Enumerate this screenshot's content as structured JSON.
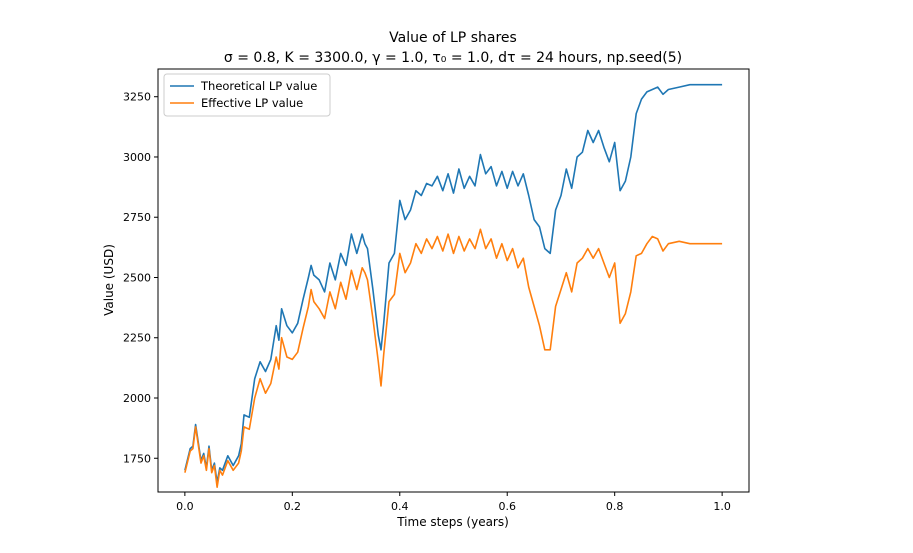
{
  "chart_data": {
    "type": "line",
    "title": "Value of LP shares",
    "subtitle": "σ = 0.8, K = 3300.0, γ = 1.0, τ₀ = 1.0, dτ = 24 hours, np.seed(5)",
    "xlabel": "Time steps (years)",
    "ylabel": "Value (USD)",
    "xlim": [
      -0.05,
      1.05
    ],
    "ylim": [
      1610,
      3365
    ],
    "xticks": [
      "0.0",
      "0.2",
      "0.4",
      "0.6",
      "0.8",
      "1.0"
    ],
    "yticks": [
      "1750",
      "2000",
      "2250",
      "2500",
      "2750",
      "3000",
      "3250"
    ],
    "grid": false,
    "legend_position": "upper-left",
    "series": [
      {
        "name": "Theoretical LP value",
        "color": "#1f77b4",
        "x": [
          0.0,
          0.01,
          0.015,
          0.02,
          0.03,
          0.035,
          0.04,
          0.045,
          0.05,
          0.055,
          0.06,
          0.065,
          0.07,
          0.08,
          0.09,
          0.1,
          0.105,
          0.11,
          0.12,
          0.13,
          0.14,
          0.15,
          0.16,
          0.17,
          0.175,
          0.18,
          0.19,
          0.2,
          0.21,
          0.22,
          0.23,
          0.235,
          0.24,
          0.25,
          0.26,
          0.27,
          0.28,
          0.29,
          0.3,
          0.31,
          0.32,
          0.33,
          0.335,
          0.34,
          0.35,
          0.36,
          0.365,
          0.37,
          0.38,
          0.39,
          0.4,
          0.41,
          0.42,
          0.43,
          0.44,
          0.45,
          0.46,
          0.47,
          0.48,
          0.49,
          0.5,
          0.51,
          0.52,
          0.53,
          0.54,
          0.55,
          0.56,
          0.57,
          0.58,
          0.59,
          0.6,
          0.61,
          0.62,
          0.63,
          0.64,
          0.65,
          0.66,
          0.67,
          0.68,
          0.69,
          0.7,
          0.71,
          0.72,
          0.73,
          0.74,
          0.75,
          0.76,
          0.77,
          0.78,
          0.79,
          0.8,
          0.81,
          0.82,
          0.83,
          0.84,
          0.85,
          0.86,
          0.87,
          0.88,
          0.89,
          0.9,
          0.92,
          0.94,
          0.96,
          0.98,
          1.0
        ],
        "values": [
          1700,
          1790,
          1800,
          1890,
          1740,
          1770,
          1710,
          1800,
          1700,
          1730,
          1650,
          1710,
          1700,
          1760,
          1720,
          1760,
          1810,
          1930,
          1920,
          2080,
          2150,
          2110,
          2160,
          2300,
          2240,
          2370,
          2300,
          2270,
          2310,
          2410,
          2500,
          2550,
          2510,
          2490,
          2440,
          2560,
          2490,
          2600,
          2550,
          2680,
          2600,
          2680,
          2640,
          2620,
          2450,
          2260,
          2200,
          2310,
          2560,
          2600,
          2820,
          2740,
          2780,
          2860,
          2840,
          2890,
          2880,
          2920,
          2860,
          2930,
          2850,
          2950,
          2870,
          2920,
          2880,
          3010,
          2930,
          2960,
          2880,
          2940,
          2870,
          2940,
          2880,
          2930,
          2840,
          2740,
          2710,
          2620,
          2600,
          2780,
          2840,
          2950,
          2870,
          3000,
          3020,
          3110,
          3060,
          3110,
          3040,
          2980,
          3060,
          2860,
          2900,
          3000,
          3180,
          3240,
          3270,
          3280,
          3290,
          3260,
          3280,
          3290,
          3300,
          3300,
          3300,
          3300
        ]
      },
      {
        "name": "Effective LP value",
        "color": "#ff7f0e",
        "x": [
          0.0,
          0.01,
          0.015,
          0.02,
          0.03,
          0.035,
          0.04,
          0.045,
          0.05,
          0.055,
          0.06,
          0.065,
          0.07,
          0.08,
          0.09,
          0.1,
          0.105,
          0.11,
          0.12,
          0.13,
          0.14,
          0.15,
          0.16,
          0.17,
          0.175,
          0.18,
          0.19,
          0.2,
          0.21,
          0.22,
          0.23,
          0.235,
          0.24,
          0.25,
          0.26,
          0.27,
          0.28,
          0.29,
          0.3,
          0.31,
          0.32,
          0.33,
          0.335,
          0.34,
          0.35,
          0.36,
          0.365,
          0.37,
          0.38,
          0.39,
          0.4,
          0.41,
          0.42,
          0.43,
          0.44,
          0.45,
          0.46,
          0.47,
          0.48,
          0.49,
          0.5,
          0.51,
          0.52,
          0.53,
          0.54,
          0.55,
          0.56,
          0.57,
          0.58,
          0.59,
          0.6,
          0.61,
          0.62,
          0.63,
          0.64,
          0.65,
          0.66,
          0.67,
          0.68,
          0.69,
          0.7,
          0.71,
          0.72,
          0.73,
          0.74,
          0.75,
          0.76,
          0.77,
          0.78,
          0.79,
          0.8,
          0.81,
          0.82,
          0.83,
          0.84,
          0.85,
          0.86,
          0.87,
          0.88,
          0.89,
          0.9,
          0.92,
          0.94,
          0.96,
          0.98,
          1.0
        ],
        "values": [
          1690,
          1780,
          1790,
          1880,
          1730,
          1760,
          1700,
          1790,
          1690,
          1720,
          1630,
          1700,
          1680,
          1740,
          1700,
          1730,
          1780,
          1880,
          1870,
          2000,
          2080,
          2020,
          2060,
          2170,
          2120,
          2250,
          2170,
          2160,
          2190,
          2290,
          2380,
          2450,
          2400,
          2370,
          2330,
          2440,
          2370,
          2480,
          2410,
          2530,
          2450,
          2540,
          2520,
          2490,
          2330,
          2150,
          2050,
          2180,
          2400,
          2430,
          2600,
          2520,
          2560,
          2640,
          2600,
          2660,
          2620,
          2670,
          2610,
          2680,
          2600,
          2670,
          2610,
          2660,
          2620,
          2700,
          2620,
          2660,
          2580,
          2640,
          2570,
          2620,
          2540,
          2580,
          2460,
          2380,
          2300,
          2200,
          2200,
          2380,
          2450,
          2520,
          2440,
          2560,
          2580,
          2620,
          2580,
          2620,
          2560,
          2500,
          2560,
          2310,
          2350,
          2440,
          2590,
          2600,
          2640,
          2670,
          2660,
          2610,
          2640,
          2650,
          2640,
          2640,
          2640,
          2640
        ]
      }
    ]
  }
}
